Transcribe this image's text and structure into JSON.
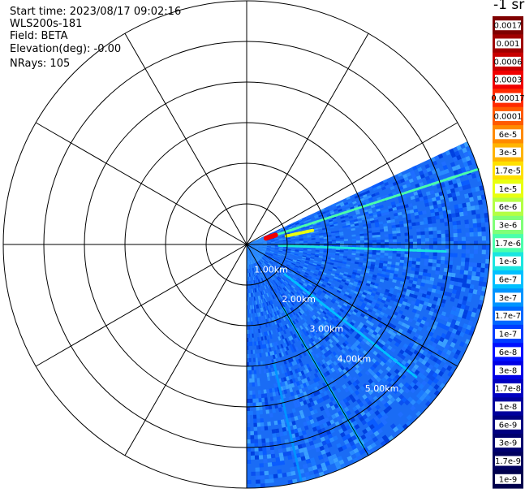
{
  "header": {
    "start_time": "Start time: 2023/08/17 09:02:16",
    "instrument": "WLS200s-181",
    "field": "Field: BETA",
    "elevation": "Elevation(deg): -0.00",
    "nrays": "NRays: 105"
  },
  "colorbar": {
    "unit": "-1 sr",
    "ticks": [
      "0.0017",
      "0.001",
      "0.0006",
      "0.0003",
      "0.00017",
      "0.0001",
      "6e-5",
      "3e-5",
      "1.7e-5",
      "1e-5",
      "6e-6",
      "3e-6",
      "1.7e-6",
      "1e-6",
      "6e-7",
      "3e-7",
      "1.7e-7",
      "1e-7",
      "6e-8",
      "3e-8",
      "1.7e-8",
      "1e-8",
      "6e-9",
      "3e-9",
      "1.7e-9",
      "1e-9"
    ],
    "colors": [
      "#7f0000",
      "#a00000",
      "#c80000",
      "#f00000",
      "#ff2a00",
      "#ff5a00",
      "#ff8a00",
      "#ffb400",
      "#ffe000",
      "#e8ff10",
      "#b4ff44",
      "#80ff78",
      "#4affac",
      "#1ae6e0",
      "#00c0ff",
      "#0094ff",
      "#0068ff",
      "#003cff",
      "#0010ff",
      "#0000e4",
      "#0000c0",
      "#00009c",
      "#000080",
      "#00006e",
      "#00005e",
      "#00004c"
    ]
  },
  "chart_data": {
    "type": "heatmap",
    "projection": "polar-ppi",
    "range_ring_labels": [
      "1.00km",
      "2.00km",
      "3.00km",
      "4.00km",
      "5.00km"
    ],
    "range_rings_km": [
      1,
      2,
      3,
      4,
      5,
      6
    ],
    "max_range_km": 6,
    "azimuth_lines_deg": [
      0,
      30,
      60,
      90,
      120,
      150,
      180,
      210,
      240,
      270,
      300,
      330
    ],
    "sector_start_deg": 65,
    "sector_end_deg": 180,
    "nrays": 105,
    "colormap": "jet",
    "scale": "log",
    "vmin": 1e-09,
    "vmax": 0.0017,
    "background_level": 3e-08,
    "features": [
      {
        "azimuth_deg": 72,
        "range_km": [
          0.6,
          6.0
        ],
        "level": 1.7e-06
      },
      {
        "azimuth_deg": 92,
        "range_km": [
          0.8,
          4.9
        ],
        "level": 1e-06
      },
      {
        "azimuth_deg": 128,
        "range_km": [
          1.2,
          5.3
        ],
        "level": 6e-07
      },
      {
        "azimuth_deg": 150,
        "range_km": [
          1.8,
          5.8
        ],
        "level": 6e-07
      },
      {
        "azimuth_deg": 167,
        "range_km": [
          3.0,
          6.0
        ],
        "level": 3e-07
      },
      {
        "azimuth_deg": 78,
        "range_km": [
          1.0,
          1.7
        ],
        "level": 1e-05
      },
      {
        "azimuth_deg": 72,
        "range_km": [
          0.5,
          0.75
        ],
        "level": 0.0003
      }
    ]
  }
}
